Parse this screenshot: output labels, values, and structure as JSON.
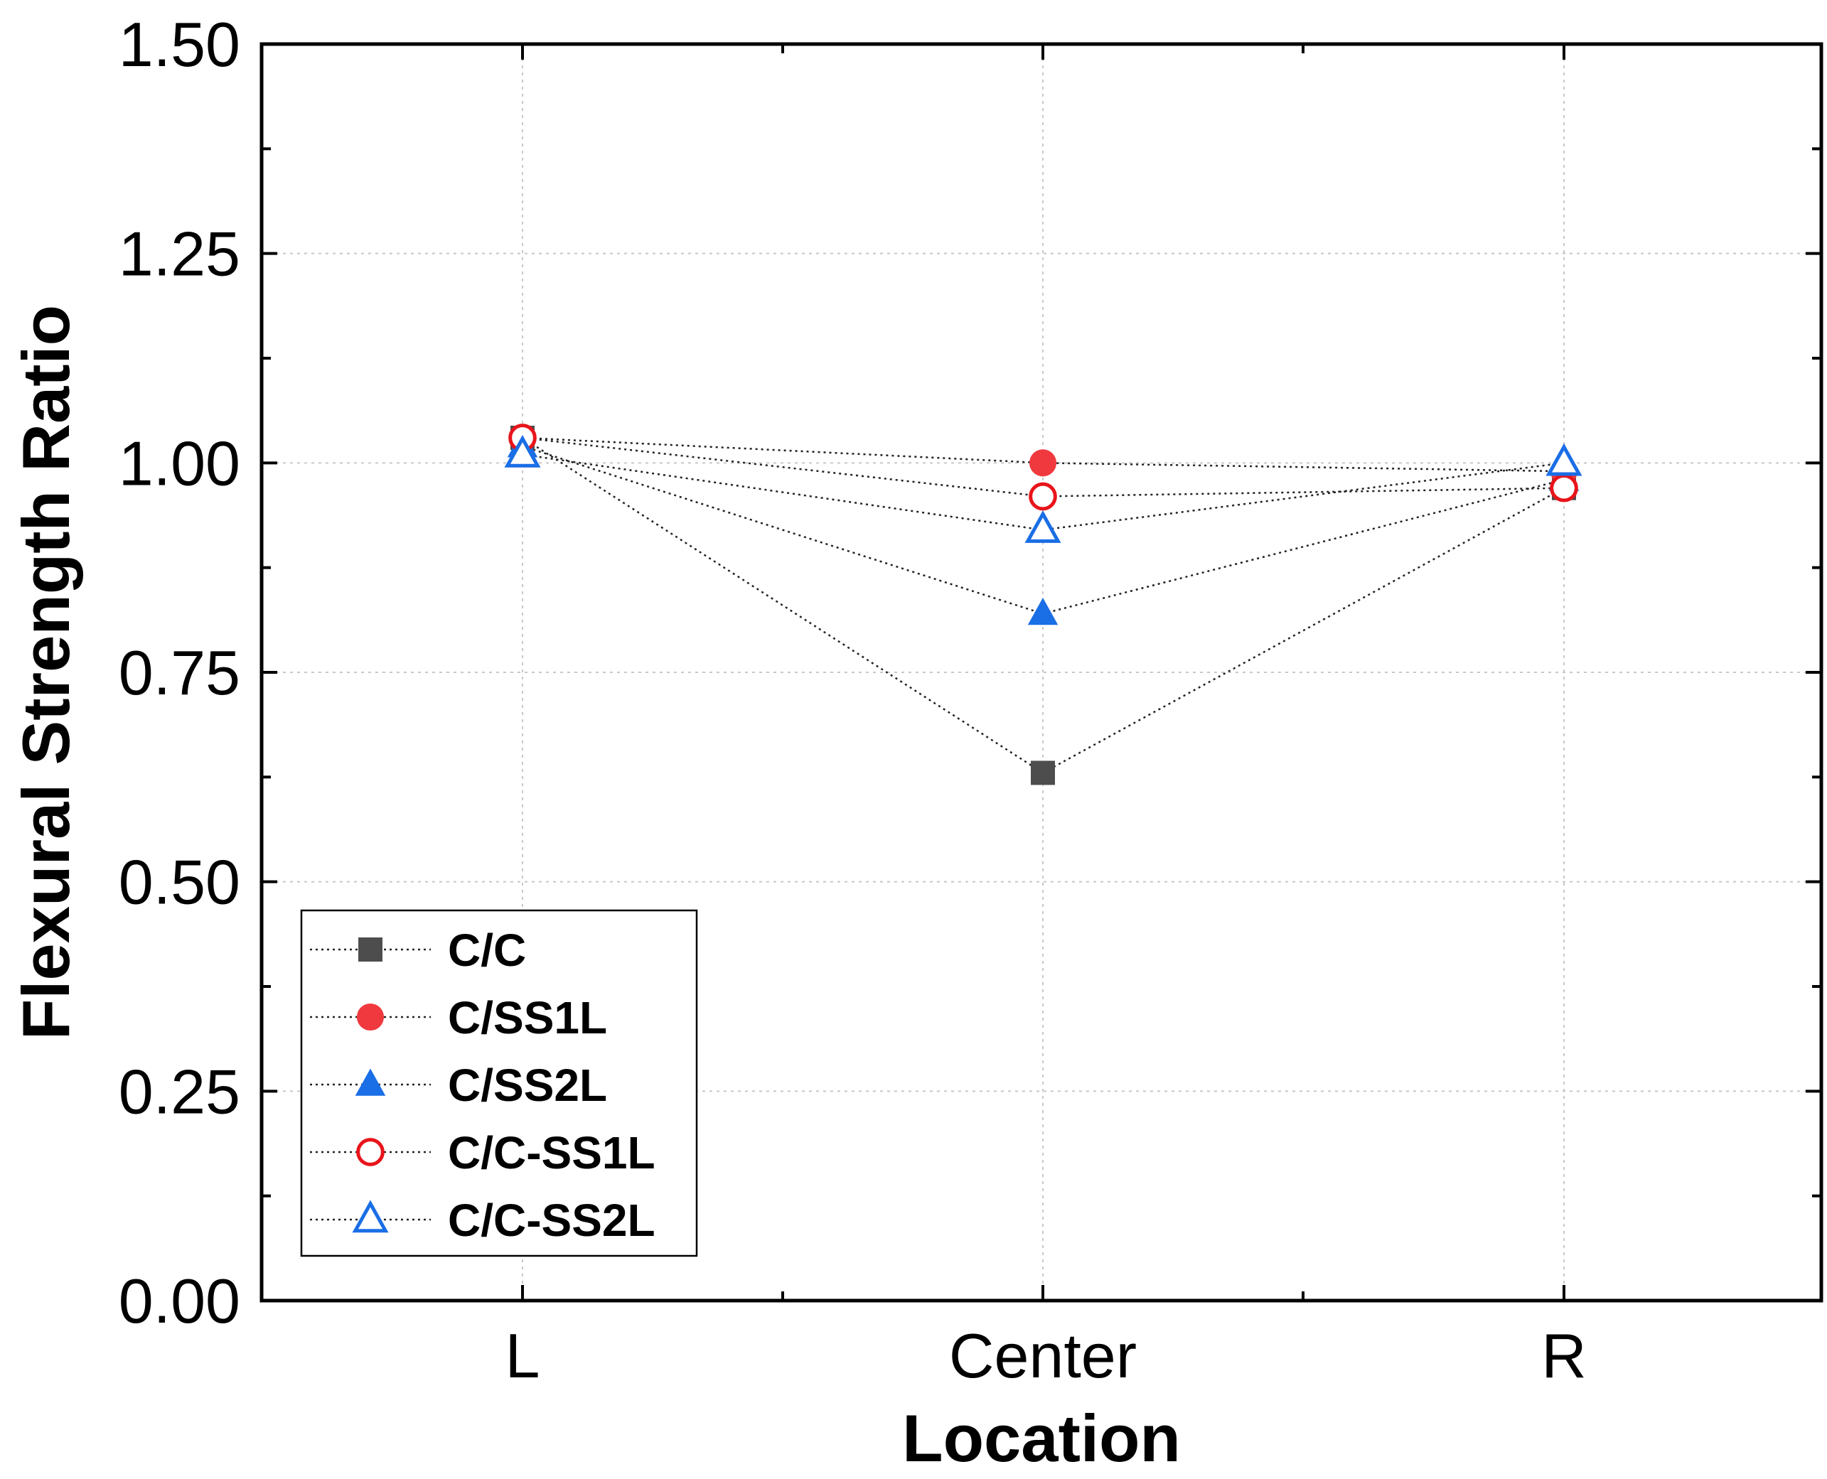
{
  "chart_data": {
    "type": "scatter",
    "xlabel": "Location",
    "ylabel": "Flexural Strength Ratio",
    "categories": [
      "L",
      "Center",
      "R"
    ],
    "ylim": [
      0.0,
      1.5
    ],
    "y_ticks": [
      "0.00",
      "0.25",
      "0.50",
      "0.75",
      "1.00",
      "1.25",
      "1.50"
    ],
    "grid": true,
    "legend_position": "bottom-left",
    "series": [
      {
        "name": "C/C",
        "marker": "square-filled",
        "color": "#4d4d4d",
        "values": [
          1.03,
          0.63,
          0.97
        ]
      },
      {
        "name": "C/SS1L",
        "marker": "circle-filled",
        "color": "#f0393e",
        "values": [
          1.03,
          1.0,
          0.99
        ]
      },
      {
        "name": "C/SS2L",
        "marker": "triangle-filled",
        "color": "#1a6ee6",
        "values": [
          1.02,
          0.82,
          0.98
        ]
      },
      {
        "name": "C/C-SS1L",
        "marker": "circle-open",
        "color": "#e8141b",
        "values": [
          1.03,
          0.96,
          0.97
        ]
      },
      {
        "name": "C/C-SS2L",
        "marker": "triangle-open",
        "color": "#1a6ee6",
        "values": [
          1.01,
          0.92,
          1.0
        ]
      }
    ]
  }
}
